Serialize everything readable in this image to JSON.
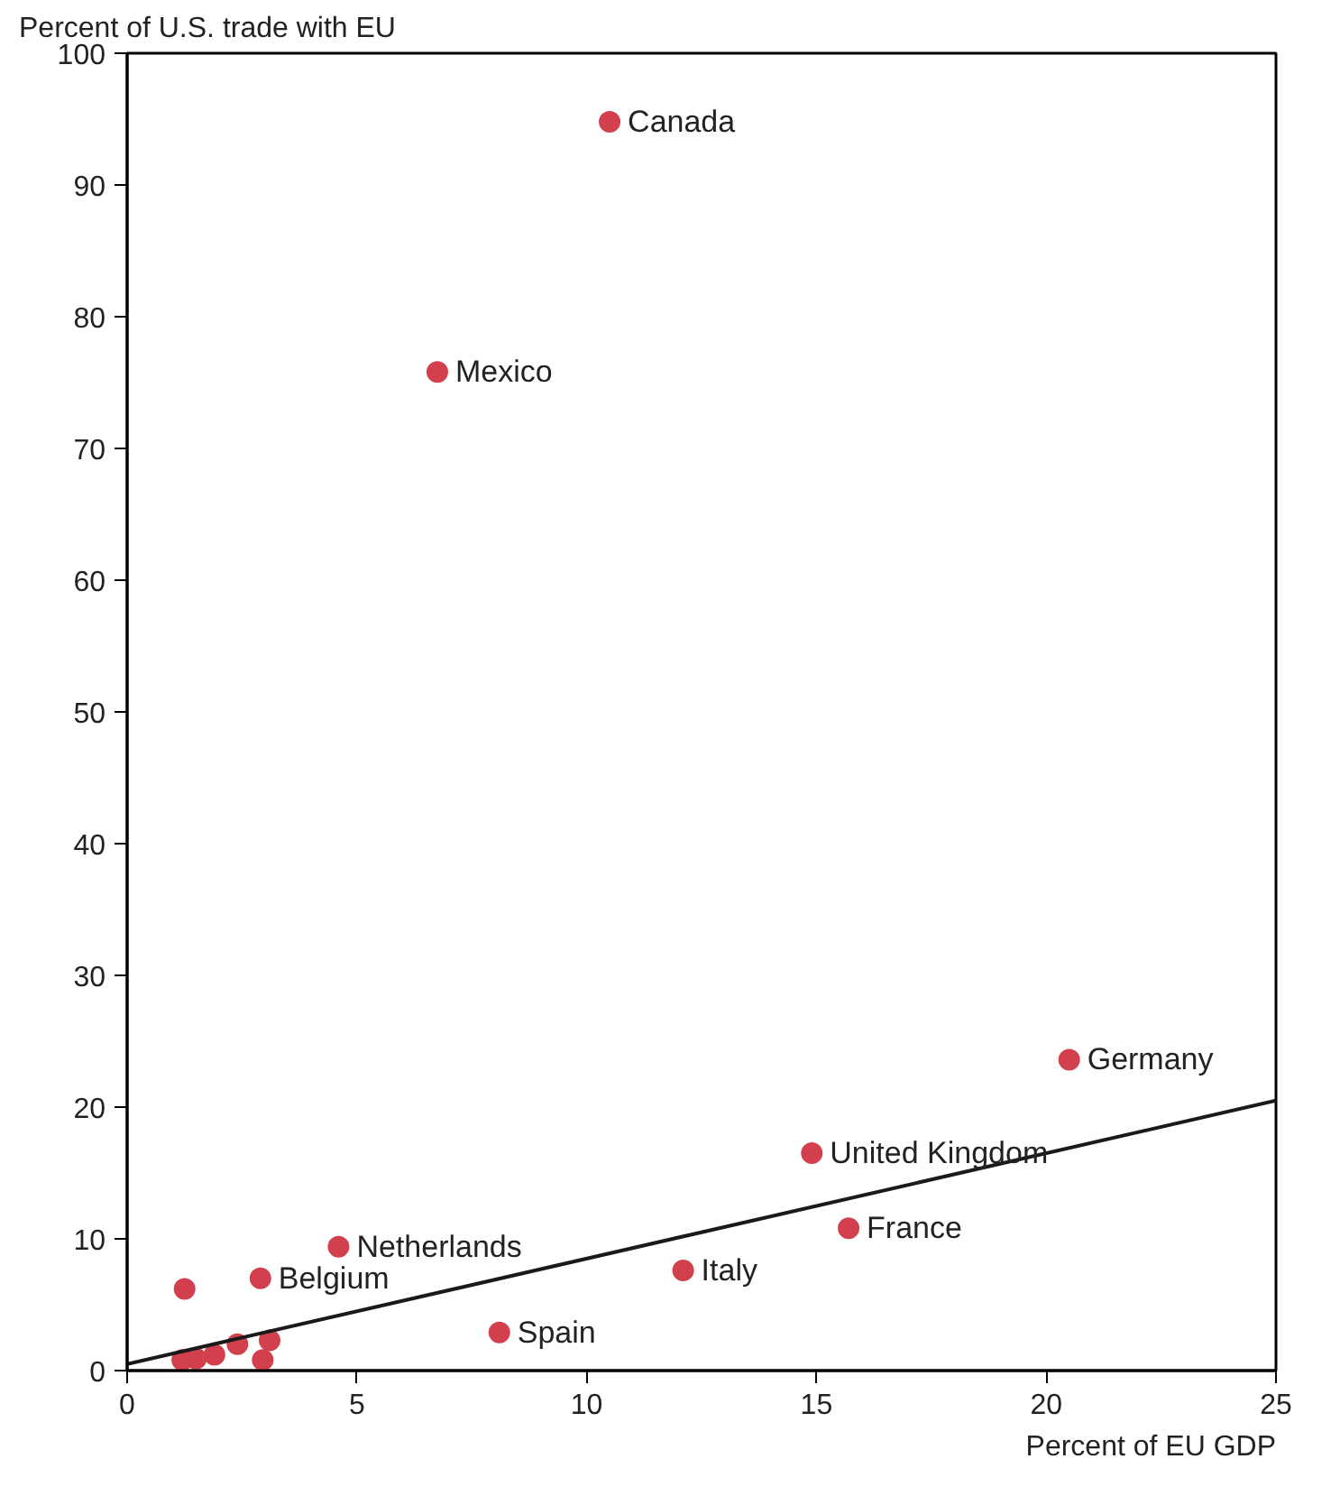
{
  "chart_data": {
    "type": "scatter",
    "xlabel": "Percent of EU GDP",
    "ylabel": "Percent of U.S. trade with EU",
    "xlim": [
      0,
      25
    ],
    "ylim": [
      0,
      100
    ],
    "xticks": [
      0,
      5,
      10,
      15,
      20,
      25
    ],
    "yticks": [
      0,
      10,
      20,
      30,
      40,
      50,
      60,
      70,
      80,
      90,
      100
    ],
    "grid": false,
    "series": [
      {
        "marker": "circle",
        "color": "#d2404e",
        "x": [
          10.5,
          6.75,
          20.5,
          14.9,
          15.7,
          12.1,
          8.1,
          4.6,
          2.9,
          1.25,
          1.2,
          1.5,
          1.9,
          2.4,
          2.95,
          3.1
        ],
        "values": [
          94.8,
          75.8,
          23.6,
          16.5,
          10.8,
          7.6,
          2.9,
          9.4,
          7.0,
          6.2,
          0.8,
          0.9,
          1.2,
          2.0,
          0.8,
          2.3
        ]
      },
      {
        "type": "line",
        "marker": "none",
        "color": "#1a1a1a",
        "x": [
          0,
          25
        ],
        "values": [
          0.5,
          20.5
        ]
      }
    ],
    "annotations": [
      {
        "text": "Canada",
        "x": 10.5,
        "y": 94.8
      },
      {
        "text": "Mexico",
        "x": 6.75,
        "y": 75.8
      },
      {
        "text": "Germany",
        "x": 20.5,
        "y": 23.6
      },
      {
        "text": "United Kingdom",
        "x": 14.9,
        "y": 16.5
      },
      {
        "text": "France",
        "x": 15.7,
        "y": 10.8
      },
      {
        "text": "Italy",
        "x": 12.1,
        "y": 7.6
      },
      {
        "text": "Spain",
        "x": 8.1,
        "y": 2.9
      },
      {
        "text": "Netherlands",
        "x": 4.6,
        "y": 9.4
      },
      {
        "text": "Belgium",
        "x": 2.9,
        "y": 7.0
      }
    ]
  }
}
